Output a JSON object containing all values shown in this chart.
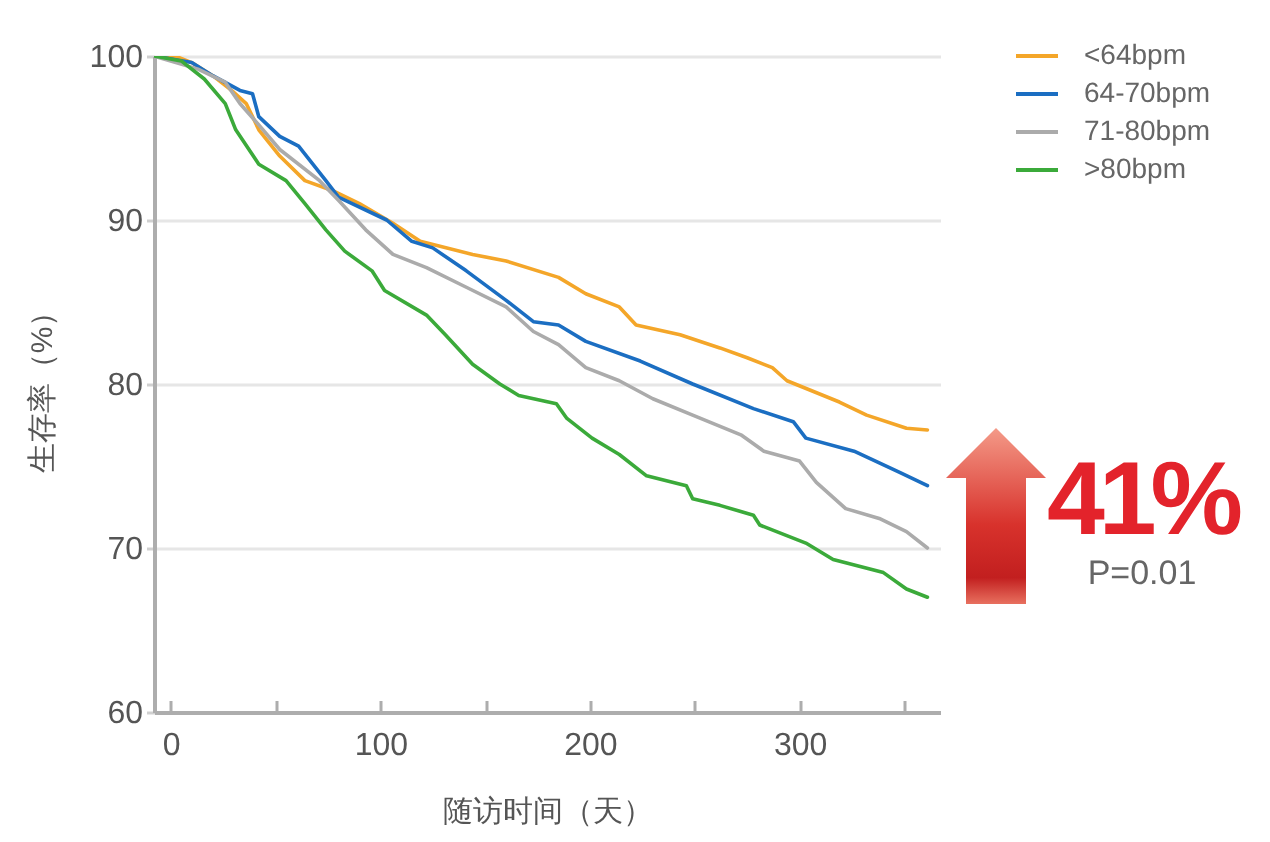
{
  "chart_data": {
    "type": "line",
    "xlabel": "随访时间（天）",
    "ylabel": "生存率（%）",
    "xlim": [
      -8,
      367
    ],
    "ylim": [
      60,
      100
    ],
    "xticks": [
      0,
      {
        "value": 50,
        "label": null
      },
      100,
      {
        "value": 150,
        "label": null
      },
      200,
      {
        "value": 250,
        "label": null
      },
      300,
      {
        "value": 350,
        "label": null
      }
    ],
    "yticks": [
      60,
      70,
      80,
      90,
      100
    ],
    "grid": "y",
    "legend": "top right",
    "series": [
      {
        "name": "<64bpm",
        "color": "#f4a629",
        "x": [
          -8,
          4,
          10,
          20,
          29,
          36,
          42,
          52,
          64,
          77,
          90,
          106,
          119,
          144,
          160,
          185,
          198,
          214,
          222,
          243,
          262,
          275,
          287,
          294,
          319,
          332,
          351,
          361
        ],
        "values": [
          100,
          99.9,
          99.6,
          98.8,
          97.9,
          97.1,
          95.5,
          93.9,
          92.4,
          91.8,
          91.0,
          89.8,
          88.7,
          87.9,
          87.5,
          86.5,
          85.5,
          84.7,
          83.6,
          83.0,
          82.2,
          81.6,
          81.0,
          80.2,
          78.9,
          78.1,
          77.3,
          77.2
        ]
      },
      {
        "name": "64-70bpm",
        "color": "#1b6ec2",
        "x": [
          -8,
          10,
          20,
          33,
          39,
          42,
          52,
          61,
          74,
          80,
          103,
          115,
          125,
          141,
          160,
          173,
          185,
          198,
          224,
          249,
          278,
          297,
          303,
          326,
          348,
          361
        ],
        "values": [
          100,
          99.6,
          98.8,
          97.9,
          97.7,
          96.3,
          95.1,
          94.5,
          92.4,
          91.4,
          90.0,
          88.7,
          88.3,
          86.9,
          85.1,
          83.8,
          83.6,
          82.6,
          81.4,
          80.0,
          78.5,
          77.7,
          76.7,
          75.9,
          74.6,
          73.8
        ]
      },
      {
        "name": "71-80bpm",
        "color": "#ababab",
        "x": [
          -8,
          13,
          26,
          33,
          42,
          52,
          71,
          80,
          93,
          106,
          122,
          141,
          160,
          173,
          185,
          198,
          214,
          230,
          249,
          272,
          283,
          300,
          308,
          322,
          338,
          351,
          361
        ],
        "values": [
          100,
          99.2,
          98.4,
          97.1,
          95.8,
          94.3,
          92.4,
          91.2,
          89.4,
          87.9,
          87.1,
          85.9,
          84.7,
          83.2,
          82.4,
          81.0,
          80.2,
          79.1,
          78.1,
          76.9,
          75.9,
          75.3,
          74.0,
          72.4,
          71.8,
          71.0,
          70.0
        ]
      },
      {
        "name": ">80bpm",
        "color": "#3baa3a",
        "x": [
          -8,
          5,
          16,
          26,
          31,
          42,
          55,
          64,
          74,
          83,
          96,
          102,
          122,
          131,
          144,
          157,
          166,
          184,
          189,
          201,
          214,
          227,
          246,
          249,
          262,
          278,
          281,
          303,
          316,
          340,
          351,
          361
        ],
        "values": [
          100,
          99.7,
          98.6,
          97.1,
          95.5,
          93.4,
          92.4,
          91.0,
          89.4,
          88.1,
          86.9,
          85.7,
          84.2,
          83.0,
          81.2,
          80.0,
          79.3,
          78.8,
          77.9,
          76.7,
          75.7,
          74.4,
          73.8,
          73.0,
          72.6,
          72.0,
          71.4,
          70.3,
          69.3,
          68.5,
          67.5,
          67.0
        ]
      }
    ],
    "annotations": [
      "41%",
      "P=0.01"
    ]
  }
}
